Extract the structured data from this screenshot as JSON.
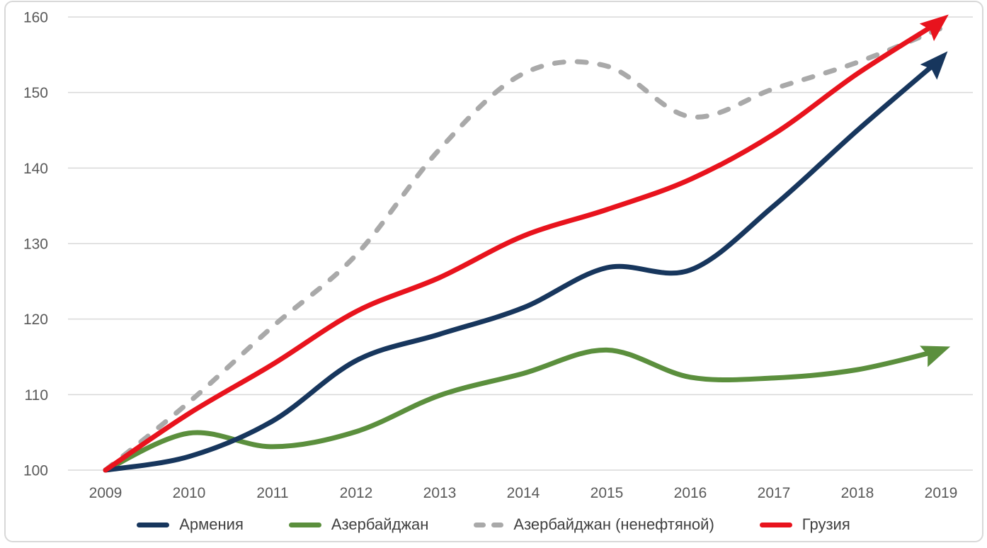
{
  "chart_data": {
    "type": "line",
    "title": "",
    "xlabel": "",
    "ylabel": "",
    "x": [
      2009,
      2010,
      2011,
      2012,
      2013,
      2014,
      2015,
      2016,
      2017,
      2018,
      2019
    ],
    "x_labels": [
      "2009",
      "2010",
      "2011",
      "2012",
      "2013",
      "2014",
      "2015",
      "2016",
      "2017",
      "2018",
      "2019"
    ],
    "ylim": [
      100,
      160
    ],
    "yticks": [
      100,
      110,
      120,
      130,
      140,
      150,
      160
    ],
    "grid": "horizontal-only",
    "legend_position": "bottom",
    "series": [
      {
        "name": "Армения",
        "color": "#17365d",
        "style": "solid",
        "arrow": true,
        "values": [
          100,
          101.8,
          106.5,
          114.5,
          118,
          121.5,
          126.8,
          126.5,
          135,
          145,
          154.5
        ]
      },
      {
        "name": "Азербайджан",
        "color": "#5b8f3d",
        "style": "solid",
        "arrow": true,
        "values": [
          100,
          104.9,
          103.1,
          105.1,
          109.9,
          112.8,
          115.9,
          112.3,
          112.2,
          113.3,
          115.9
        ]
      },
      {
        "name": "Азербайджан (ненефтяной)",
        "color": "#a9a9a9",
        "style": "dashed",
        "arrow": false,
        "values": [
          100,
          109,
          119,
          128.5,
          142.5,
          152.5,
          153.5,
          146.8,
          150.5,
          154,
          158.5
        ]
      },
      {
        "name": "Грузия",
        "color": "#e8131d",
        "style": "solid",
        "arrow": true,
        "values": [
          100,
          107.5,
          114,
          121,
          125.5,
          131,
          134.5,
          138.5,
          144.5,
          152.5,
          159.5
        ]
      }
    ],
    "colors": {
      "gridline": "#d9d9d9",
      "axis_text": "#595959",
      "legend_text": "#404040",
      "frame": "#d8d8d8"
    }
  }
}
